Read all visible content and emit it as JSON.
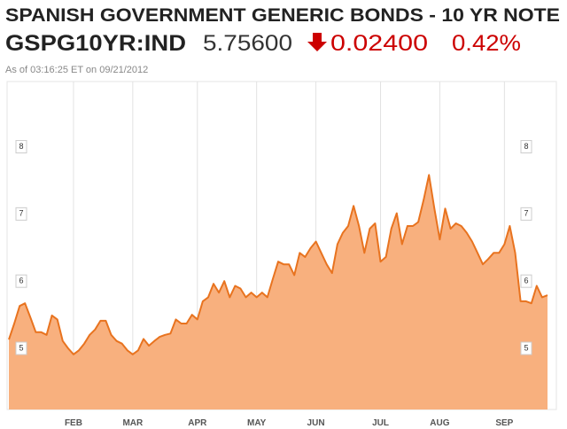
{
  "header": {
    "title": "SPANISH GOVERNMENT GENERIC BONDS - 10 YR NOTE",
    "ticker": "GSPG10YR:IND",
    "price": "5.75600",
    "change": "0.02400",
    "change_pct": "0.42%",
    "timestamp": "As of 03:16:25 ET on 09/21/2012"
  },
  "chart_data": {
    "type": "area",
    "color": "#e8731f",
    "fill": "#f8b07e",
    "grid": "x",
    "categories": [
      null,
      null,
      null,
      null,
      null,
      null,
      null,
      null,
      null,
      null,
      null,
      null,
      "FEB",
      null,
      null,
      null,
      null,
      null,
      null,
      null,
      null,
      null,
      null,
      "MAR",
      null,
      null,
      null,
      null,
      null,
      null,
      null,
      null,
      null,
      null,
      null,
      "APR",
      null,
      null,
      null,
      null,
      null,
      null,
      null,
      null,
      null,
      null,
      "MAY",
      null,
      null,
      null,
      null,
      null,
      null,
      null,
      null,
      null,
      null,
      "JUN",
      null,
      null,
      null,
      null,
      null,
      null,
      null,
      null,
      null,
      null,
      null,
      "JUL",
      null,
      null,
      null,
      null,
      null,
      null,
      null,
      null,
      null,
      null,
      "AUG",
      null,
      null,
      null,
      null,
      null,
      null,
      null,
      null,
      null,
      null,
      null,
      "SEP",
      null,
      null,
      null,
      null,
      null,
      null,
      null,
      null
    ],
    "values": [
      5.13,
      5.37,
      5.63,
      5.67,
      5.46,
      5.24,
      5.24,
      5.2,
      5.49,
      5.43,
      5.11,
      5.0,
      4.91,
      4.97,
      5.07,
      5.2,
      5.28,
      5.41,
      5.41,
      5.2,
      5.11,
      5.07,
      4.97,
      4.91,
      4.97,
      5.14,
      5.04,
      5.11,
      5.17,
      5.2,
      5.22,
      5.43,
      5.37,
      5.37,
      5.5,
      5.43,
      5.7,
      5.76,
      5.96,
      5.83,
      6.0,
      5.76,
      5.93,
      5.89,
      5.76,
      5.83,
      5.76,
      5.83,
      5.76,
      6.03,
      6.29,
      6.25,
      6.25,
      6.09,
      6.42,
      6.36,
      6.49,
      6.59,
      6.42,
      6.25,
      6.12,
      6.55,
      6.72,
      6.82,
      7.12,
      6.82,
      6.42,
      6.78,
      6.86,
      6.29,
      6.36,
      6.78,
      7.01,
      6.55,
      6.82,
      6.82,
      6.88,
      7.21,
      7.58,
      7.08,
      6.62,
      7.08,
      6.78,
      6.86,
      6.82,
      6.72,
      6.59,
      6.42,
      6.25,
      6.33,
      6.42,
      6.42,
      6.55,
      6.82,
      6.42,
      5.7,
      5.7,
      5.67,
      5.93,
      5.76,
      5.79
    ],
    "ylim": [
      4.09,
      8.97
    ],
    "yticks": [
      5,
      6,
      7,
      8
    ]
  }
}
